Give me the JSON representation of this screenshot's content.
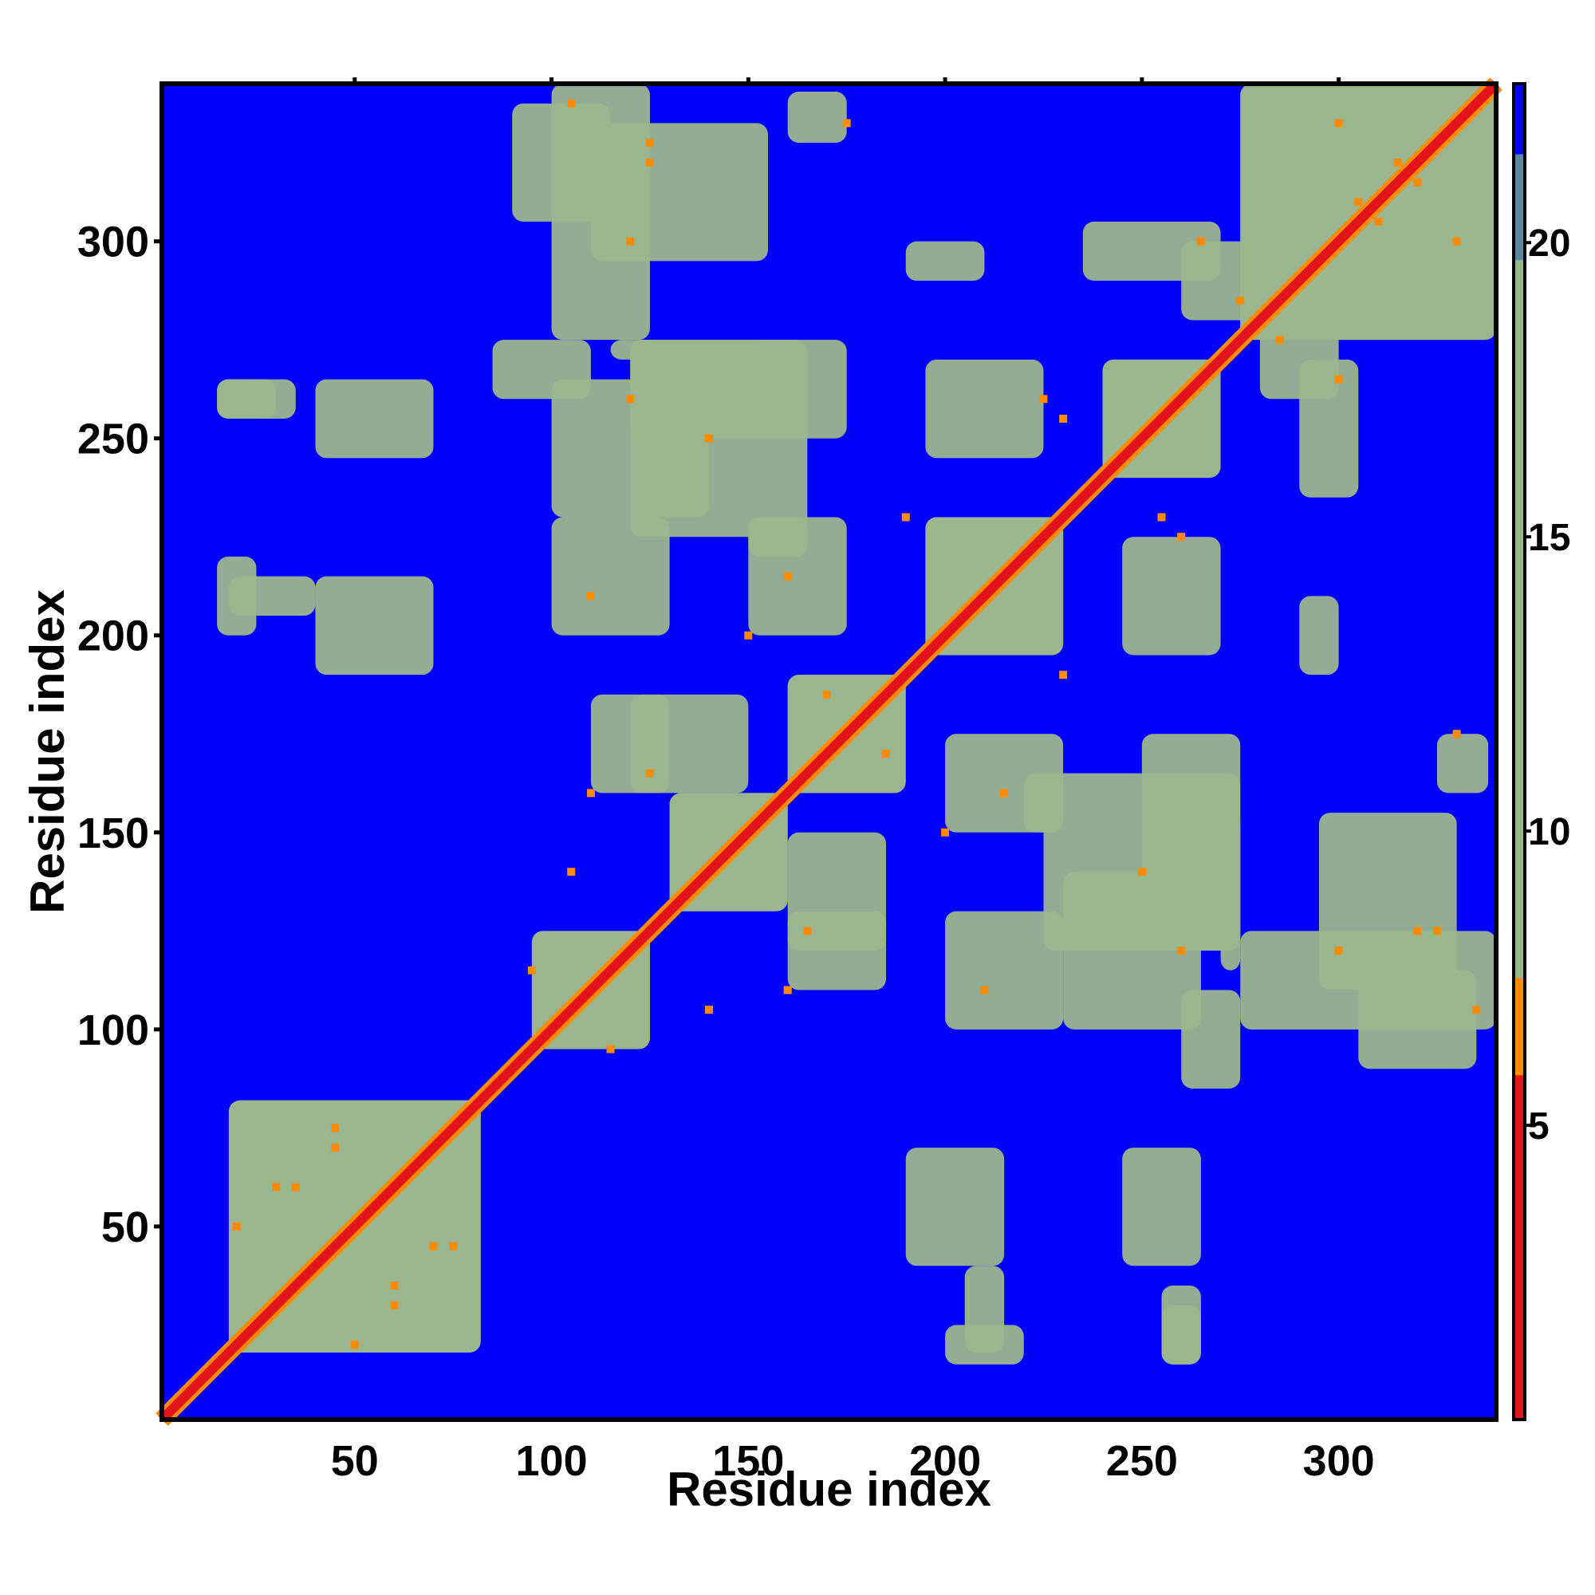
{
  "chart_data": {
    "type": "heatmap",
    "title": "",
    "xlabel": "Residue index",
    "ylabel": "Residue index",
    "xlim": [
      1,
      340
    ],
    "ylim": [
      1,
      340
    ],
    "x_ticks": [
      50,
      100,
      150,
      200,
      250,
      300
    ],
    "y_ticks": [
      50,
      100,
      150,
      200,
      250,
      300
    ],
    "colorbar": {
      "range": [
        0,
        22.7
      ],
      "ticks": [
        5,
        10,
        15,
        20
      ],
      "bands": [
        {
          "from": 0,
          "to": 7.5,
          "color": "#e4141c",
          "edge_color": "#ff8c00"
        },
        {
          "from": 7.5,
          "to": 19.7,
          "color": "#9bb58d"
        },
        {
          "from": 19.7,
          "to": 21.5,
          "color": "#5a86a6"
        },
        {
          "from": 21.5,
          "to": 22.7,
          "color": "#0000ff"
        }
      ]
    },
    "background_value": 22,
    "symmetric": true,
    "diagonal": {
      "start": 1,
      "end": 340,
      "value": 3
    },
    "contact_regions": [
      {
        "i": [
          18,
          82
        ],
        "j": [
          18,
          82
        ],
        "value": 11
      },
      {
        "i": [
          95,
          125
        ],
        "j": [
          95,
          125
        ],
        "value": 11
      },
      {
        "i": [
          130,
          160
        ],
        "j": [
          130,
          160
        ],
        "value": 11
      },
      {
        "i": [
          160,
          190
        ],
        "j": [
          160,
          190
        ],
        "value": 11
      },
      {
        "i": [
          195,
          230
        ],
        "j": [
          195,
          230
        ],
        "value": 11
      },
      {
        "i": [
          240,
          270
        ],
        "j": [
          240,
          270
        ],
        "value": 11
      },
      {
        "i": [
          275,
          340
        ],
        "j": [
          275,
          340
        ],
        "value": 11
      },
      {
        "i": [
          100,
          125
        ],
        "j": [
          275,
          340
        ],
        "value": 12
      },
      {
        "i": [
          90,
          115
        ],
        "j": [
          305,
          335
        ],
        "value": 12
      },
      {
        "i": [
          120,
          165
        ],
        "j": [
          225,
          275
        ],
        "value": 12
      },
      {
        "i": [
          160,
          185
        ],
        "j": [
          120,
          150
        ],
        "value": 12
      },
      {
        "i": [
          200,
          230
        ],
        "j": [
          100,
          130
        ],
        "value": 12
      },
      {
        "i": [
          200,
          230
        ],
        "j": [
          150,
          175
        ],
        "value": 12
      },
      {
        "i": [
          195,
          225
        ],
        "j": [
          245,
          270
        ],
        "value": 12
      },
      {
        "i": [
          260,
          280
        ],
        "j": [
          280,
          300
        ],
        "value": 12
      },
      {
        "i": [
          260,
          275
        ],
        "j": [
          85,
          110
        ],
        "value": 12
      },
      {
        "i": [
          205,
          215
        ],
        "j": [
          18,
          40
        ],
        "value": 12
      },
      {
        "i": [
          255,
          265
        ],
        "j": [
          18,
          30
        ],
        "value": 12
      },
      {
        "i": [
          295,
          330
        ],
        "j": [
          110,
          155
        ],
        "value": 12
      },
      {
        "i": [
          230,
          265
        ],
        "j": [
          100,
          140
        ],
        "value": 12
      },
      {
        "i": [
          255,
          265
        ],
        "j": [
          15,
          35
        ],
        "value": 12
      },
      {
        "i": [
          40,
          70
        ],
        "j": [
          190,
          215
        ],
        "value": 13
      },
      {
        "i": [
          40,
          70
        ],
        "j": [
          245,
          265
        ],
        "value": 13
      },
      {
        "i": [
          15,
          25
        ],
        "j": [
          200,
          220
        ],
        "value": 13
      },
      {
        "i": [
          15,
          25
        ],
        "j": [
          255,
          265
        ],
        "value": 13
      },
      {
        "i": [
          110,
          130
        ],
        "j": [
          160,
          185
        ],
        "value": 12
      },
      {
        "i": [
          150,
          165
        ],
        "j": [
          220,
          230
        ],
        "value": 12
      },
      {
        "i": [
          160,
          175
        ],
        "j": [
          325,
          338
        ],
        "value": 13
      },
      {
        "i": [
          250,
          275
        ],
        "j": [
          120,
          175
        ],
        "value": 12
      },
      {
        "i": [
          290,
          300
        ],
        "j": [
          190,
          210
        ],
        "value": 13
      },
      {
        "i": [
          290,
          305
        ],
        "j": [
          235,
          270
        ],
        "value": 13
      },
      {
        "i": [
          115,
          155
        ],
        "j": [
          270,
          275
        ],
        "value": 12
      }
    ],
    "close_contacts": [
      [
        20,
        50,
        5
      ],
      [
        35,
        60,
        5
      ],
      [
        45,
        70,
        5
      ],
      [
        60,
        30,
        5
      ],
      [
        75,
        45,
        5
      ],
      [
        105,
        140,
        5
      ],
      [
        110,
        160,
        5
      ],
      [
        115,
        95,
        5
      ],
      [
        120,
        300,
        5
      ],
      [
        125,
        320,
        5
      ],
      [
        140,
        250,
        5
      ],
      [
        150,
        200,
        5
      ],
      [
        165,
        125,
        5
      ],
      [
        175,
        330,
        5
      ],
      [
        185,
        170,
        5
      ],
      [
        210,
        110,
        5
      ],
      [
        215,
        160,
        5
      ],
      [
        225,
        260,
        5
      ],
      [
        230,
        190,
        5
      ],
      [
        255,
        230,
        5
      ],
      [
        260,
        120,
        5
      ],
      [
        265,
        300,
        5
      ],
      [
        285,
        275,
        5
      ],
      [
        305,
        310,
        5
      ],
      [
        315,
        320,
        5
      ],
      [
        325,
        125,
        5
      ],
      [
        330,
        300,
        5
      ],
      [
        335,
        105,
        5
      ]
    ]
  }
}
